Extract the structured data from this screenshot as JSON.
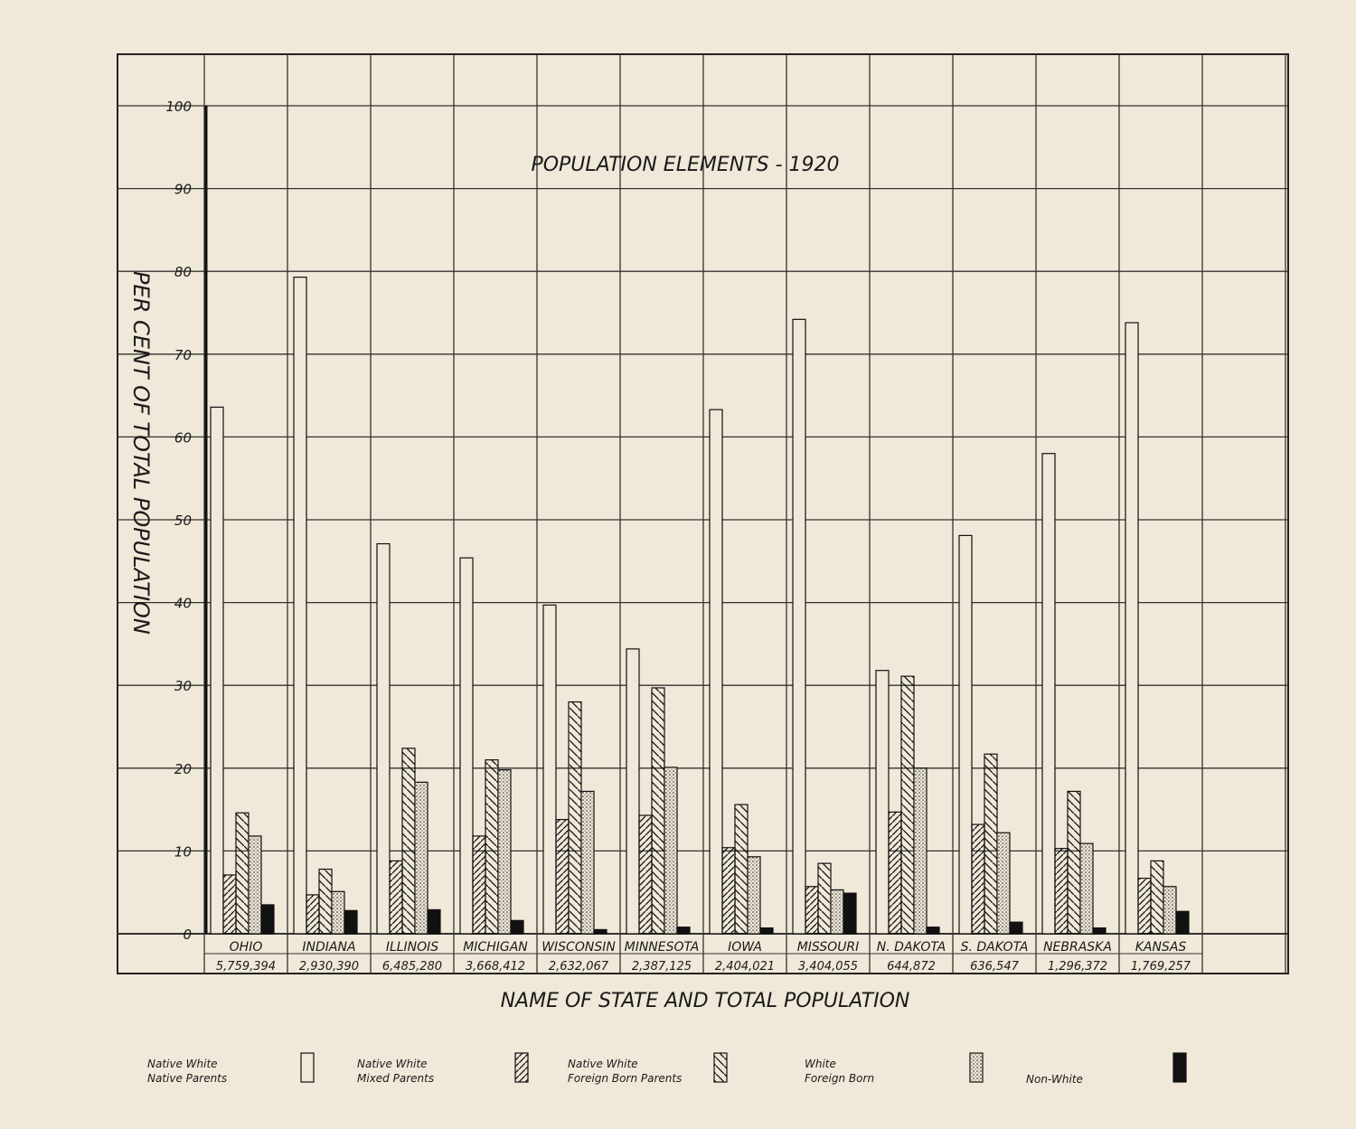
{
  "chart_data": {
    "type": "bar",
    "title": "POPULATION ELEMENTS - 1920",
    "xlabel": "NAME OF STATE AND TOTAL POPULATION",
    "ylabel": "PER CENT OF TOTAL POPULATION",
    "ylim": [
      0,
      100
    ],
    "yticks": [
      "0",
      "10",
      "20",
      "30",
      "40",
      "50",
      "60",
      "70",
      "80",
      "90",
      "100"
    ],
    "grid": true,
    "legend_position": "bottom",
    "categories": [
      "OHIO",
      "INDIANA",
      "ILLINOIS",
      "MICHIGAN",
      "WISCONSIN",
      "MINNESOTA",
      "IOWA",
      "MISSOURI",
      "N. DAKOTA",
      "S. DAKOTA",
      "NEBRASKA",
      "KANSAS"
    ],
    "populations": [
      "5,759,394",
      "2,930,390",
      "6,485,280",
      "3,668,412",
      "2,632,067",
      "2,387,125",
      "2,404,021",
      "3,404,055",
      "644,872",
      "636,547",
      "1,296,372",
      "1,769,257"
    ],
    "series": [
      {
        "name": "Native White Native Parents",
        "line1": "Native White",
        "line2": "Native Parents",
        "pattern": "blank",
        "values": [
          63.6,
          79.3,
          47.1,
          45.4,
          39.7,
          34.4,
          63.3,
          74.2,
          31.8,
          48.1,
          58.0,
          73.8
        ]
      },
      {
        "name": "Native White Mixed Parents",
        "line1": "Native White",
        "line2": "Mixed Parents",
        "pattern": "diag-right",
        "values": [
          7.1,
          4.7,
          8.8,
          11.8,
          13.8,
          14.3,
          10.4,
          5.7,
          14.7,
          13.2,
          10.3,
          6.7
        ]
      },
      {
        "name": "Native White Foreign Born Parents",
        "line1": "Native White",
        "line2": "Foreign Born Parents",
        "pattern": "diag-left",
        "values": [
          14.6,
          7.8,
          22.4,
          21.0,
          28.0,
          29.7,
          15.6,
          8.5,
          31.1,
          21.7,
          17.2,
          8.8
        ]
      },
      {
        "name": "White Foreign Born",
        "line1": "White",
        "line2": "Foreign Born",
        "pattern": "dots",
        "values": [
          11.8,
          5.1,
          18.3,
          19.8,
          17.2,
          20.1,
          9.3,
          5.3,
          20.0,
          12.2,
          10.9,
          5.7
        ]
      },
      {
        "name": "Non-White",
        "line1": "",
        "line2": "Non-White",
        "pattern": "solid",
        "values": [
          3.5,
          2.8,
          2.9,
          1.6,
          0.5,
          0.8,
          0.7,
          4.9,
          0.8,
          1.4,
          0.7,
          2.7
        ]
      }
    ]
  }
}
